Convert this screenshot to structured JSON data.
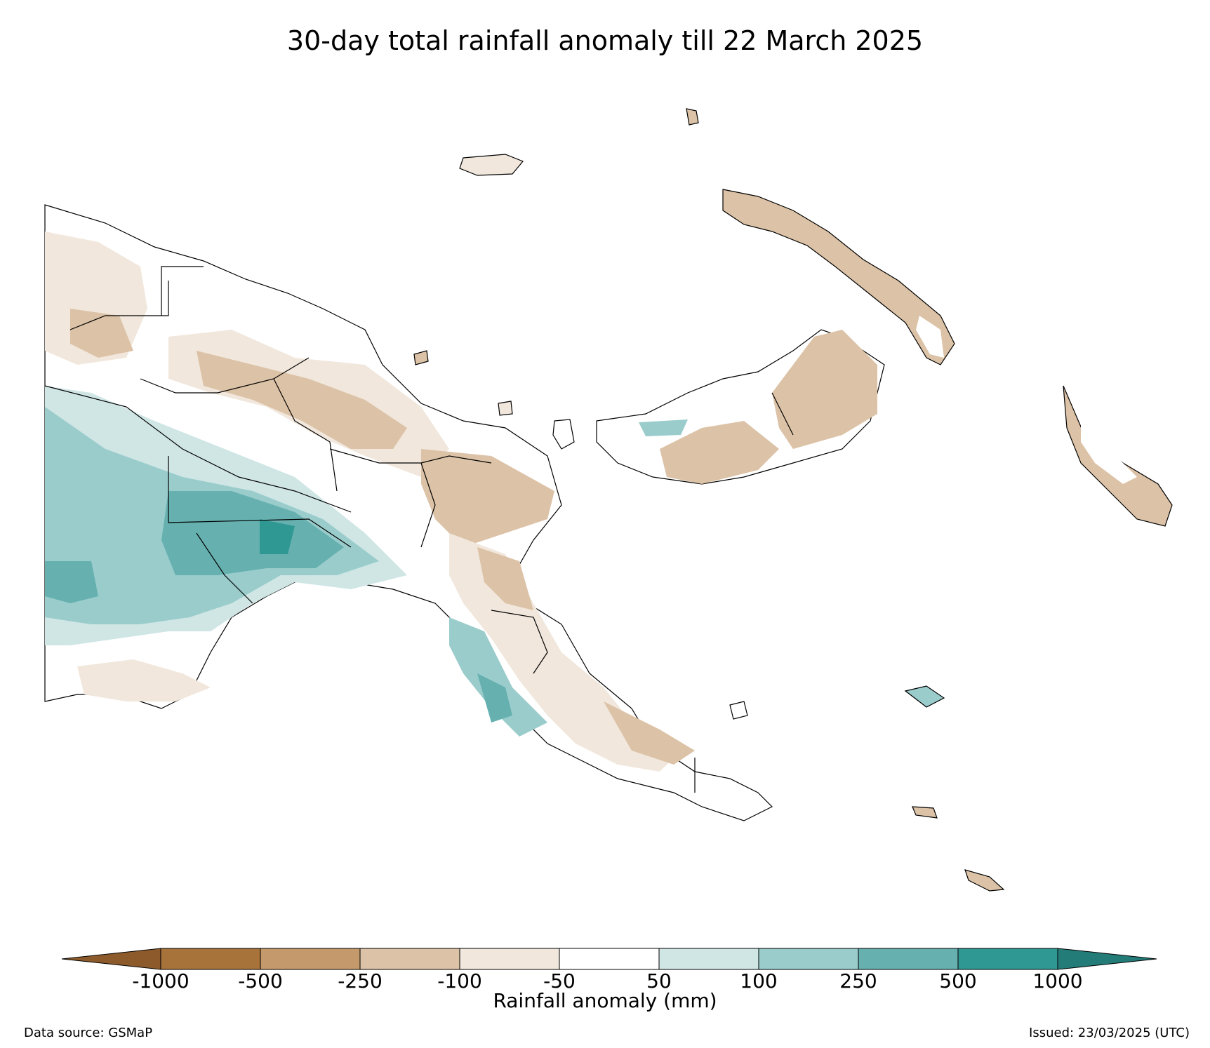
{
  "title": "30-day total rainfall anomaly till 22 March 2025",
  "colorbar": {
    "label": "Rainfall anomaly (mm)",
    "ticks": [
      "-1000",
      "-500",
      "-250",
      "-100",
      "-50",
      "50",
      "100",
      "250",
      "500",
      "1000"
    ],
    "bins": [
      {
        "range": "< -1000",
        "color": "#8c5a2b"
      },
      {
        "range": "-1000 to -500",
        "color": "#a8733b"
      },
      {
        "range": "-500 to -250",
        "color": "#c49a6c"
      },
      {
        "range": "-250 to -100",
        "color": "#dcc2a6"
      },
      {
        "range": "-100 to -50",
        "color": "#f1e7dc"
      },
      {
        "range": "-50 to 50",
        "color": "#ffffff"
      },
      {
        "range": "50 to 100",
        "color": "#cfe6e5"
      },
      {
        "range": "100 to 250",
        "color": "#9acccc"
      },
      {
        "range": "250 to 500",
        "color": "#66b0b0"
      },
      {
        "range": "500 to 1000",
        "color": "#2f9892"
      },
      {
        "range": "> 1000",
        "color": "#237c78"
      }
    ]
  },
  "footer": {
    "source": "Data source: GSMaP",
    "issued": "Issued: 23/03/2025 (UTC)"
  }
}
